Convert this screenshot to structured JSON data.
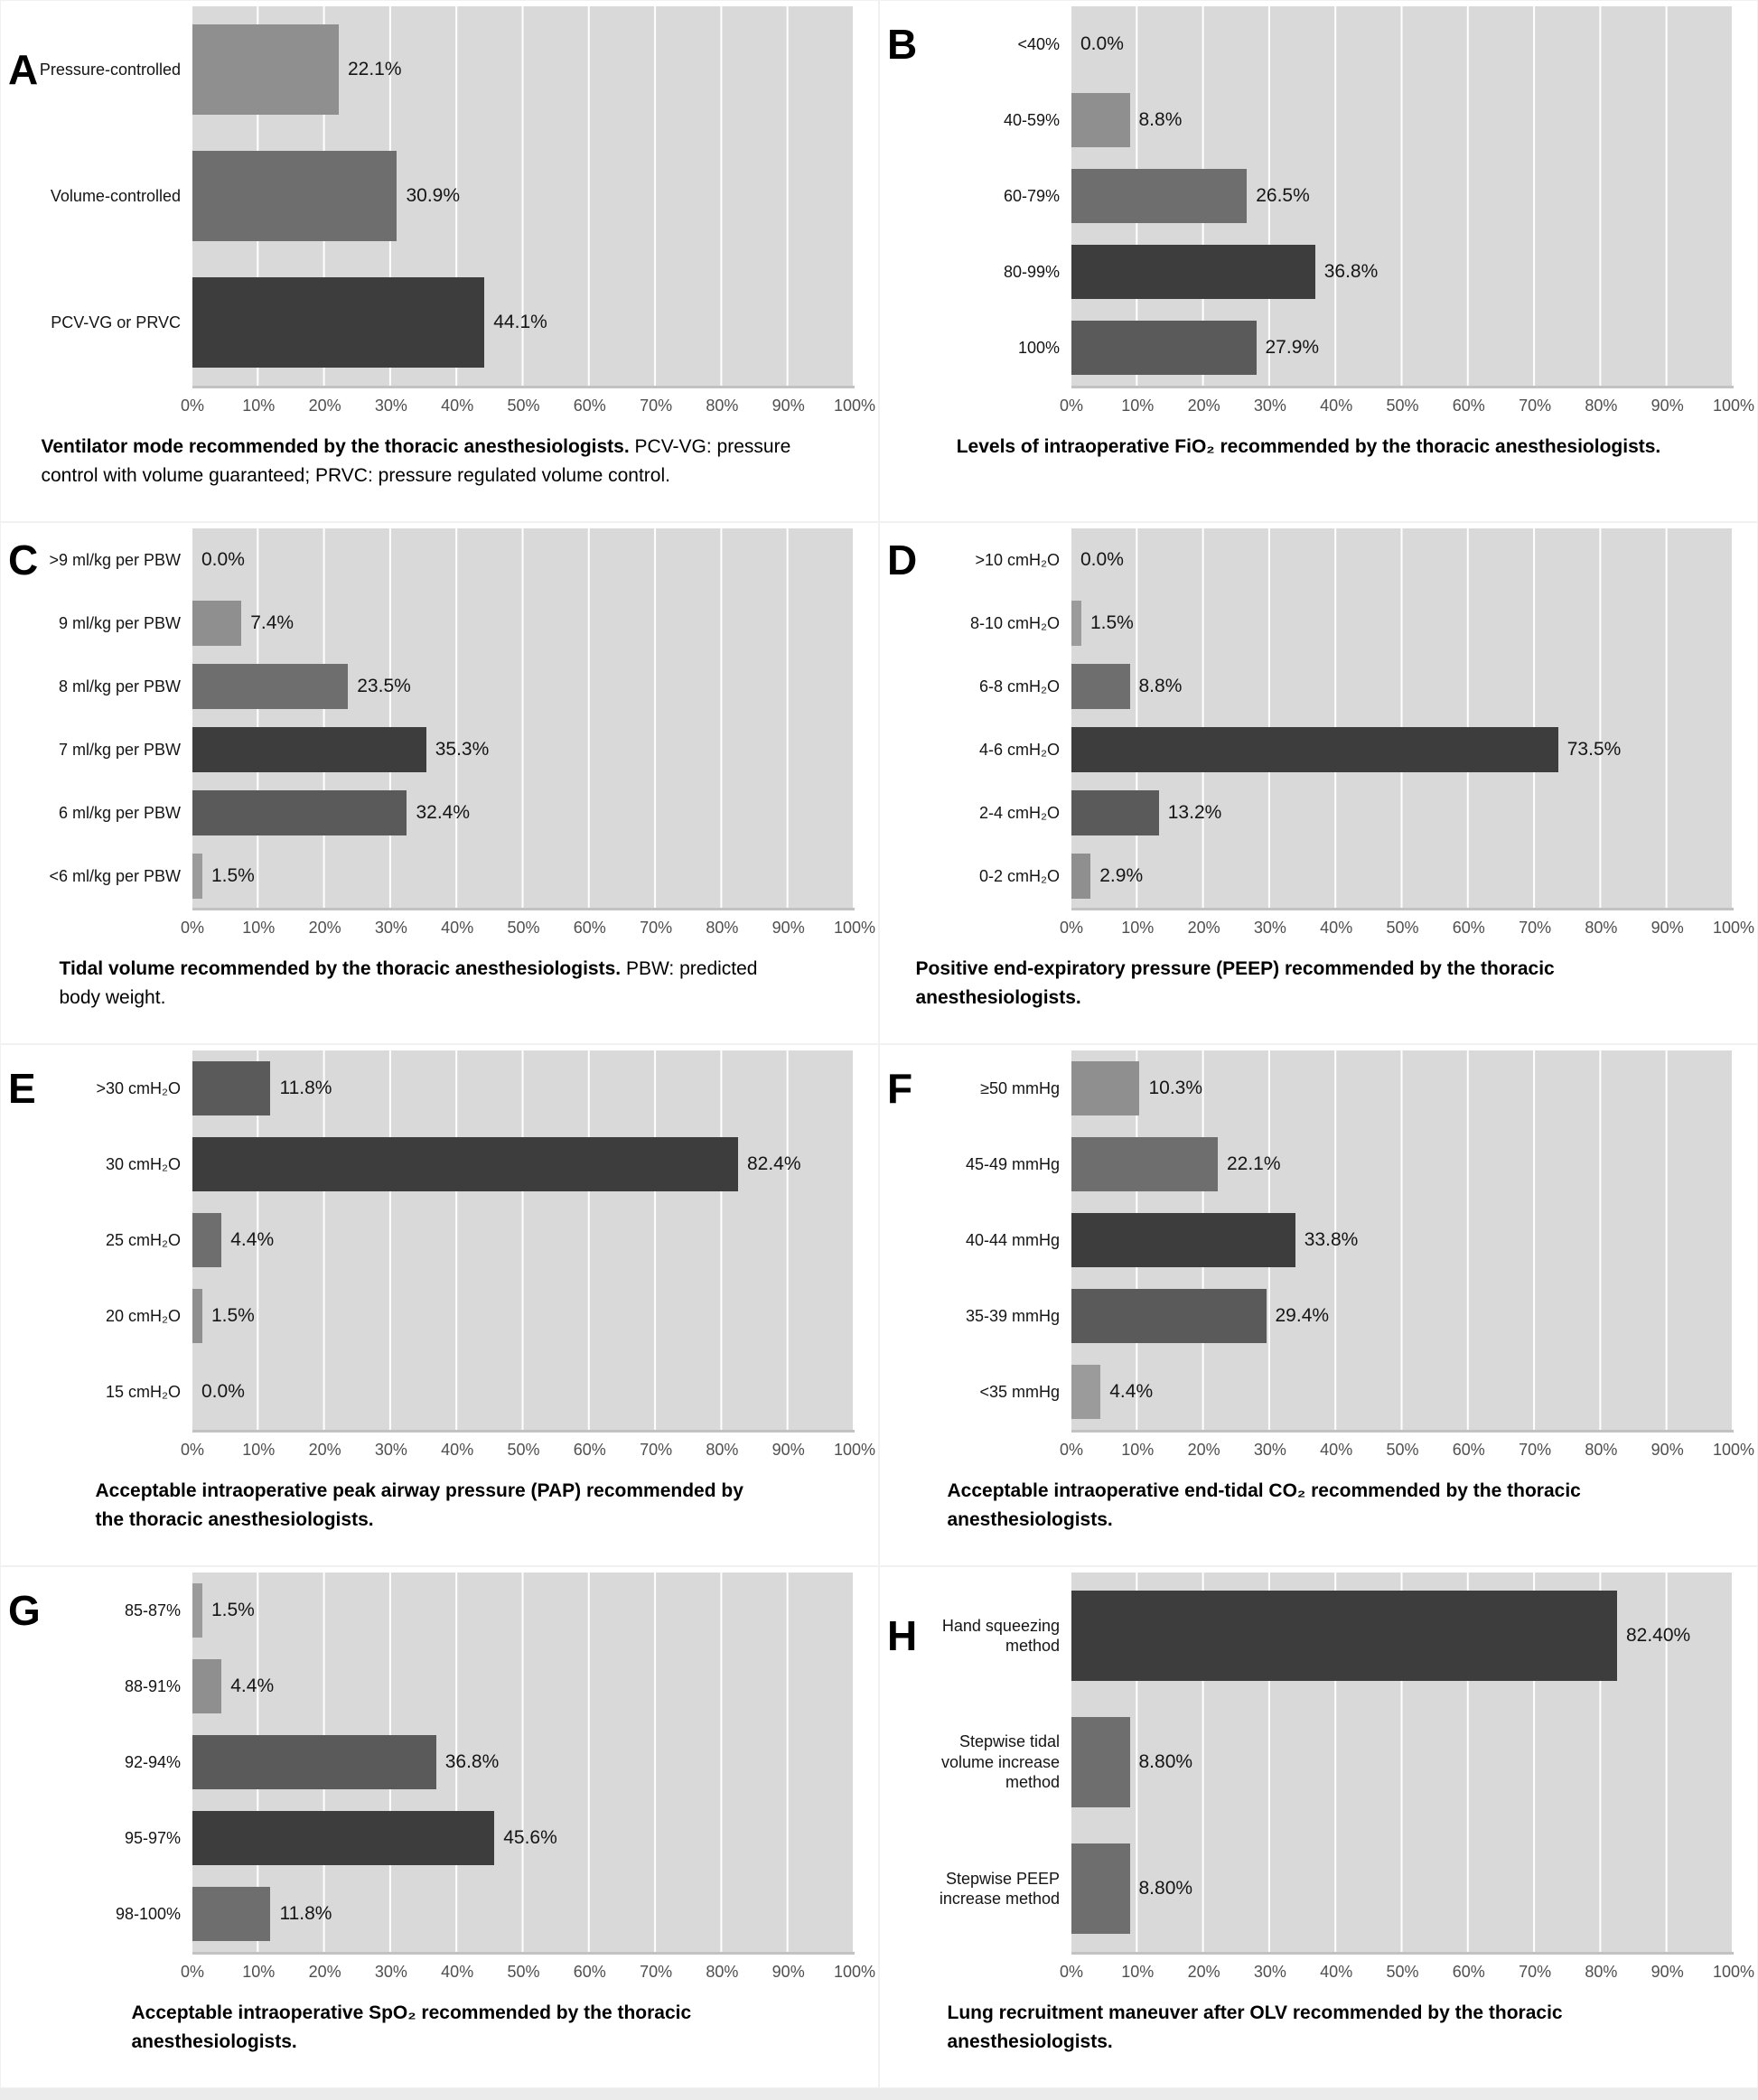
{
  "figure": {
    "axis_ticks": [
      "0%",
      "10%",
      "20%",
      "30%",
      "40%",
      "50%",
      "60%",
      "70%",
      "80%",
      "90%",
      "100%"
    ],
    "colors": {
      "plot_background": "#d9d9d9",
      "gridline": "#ffffff",
      "axis_line": "#c2c2c2",
      "tick_text": "#4f4f4f",
      "bar_darkest": "#3d3d3d",
      "bar_dark": "#5a5a5a",
      "bar_medium": "#6e6e6e",
      "bar_light": "#8f8f8f",
      "bar_lightest": "#9b9b9b"
    }
  },
  "chart_data": [
    {
      "id": "A",
      "type": "bar",
      "orientation": "horizontal",
      "xlim": [
        0,
        100
      ],
      "grid": true,
      "categories": [
        "Pressure-controlled",
        "Volume-controlled",
        "PCV-VG or PRVC"
      ],
      "values": [
        22.1,
        30.9,
        44.1
      ],
      "value_labels": [
        "22.1%",
        "30.9%",
        "44.1%"
      ],
      "bar_colors": [
        "#8f8f8f",
        "#6e6e6e",
        "#3d3d3d"
      ],
      "caption_bold": "Ventilator mode recommended by the thoracic anesthesiologists.",
      "caption_rest": "PCV-VG: pressure control with volume guaranteed; PRVC: pressure regulated volume control."
    },
    {
      "id": "B",
      "type": "bar",
      "orientation": "horizontal",
      "xlim": [
        0,
        100
      ],
      "grid": true,
      "categories": [
        "<40%",
        "40-59%",
        "60-79%",
        "80-99%",
        "100%"
      ],
      "values": [
        0.0,
        8.8,
        26.5,
        36.8,
        27.9
      ],
      "value_labels": [
        "0.0%",
        "8.8%",
        "26.5%",
        "36.8%",
        "27.9%"
      ],
      "bar_colors": [
        "none",
        "#8f8f8f",
        "#6e6e6e",
        "#3d3d3d",
        "#5a5a5a"
      ],
      "caption_bold": "Levels of intraoperative FiO₂ recommended by the thoracic anesthesiologists.",
      "caption_rest": ""
    },
    {
      "id": "C",
      "type": "bar",
      "orientation": "horizontal",
      "xlim": [
        0,
        100
      ],
      "grid": true,
      "categories": [
        ">9 ml/kg per PBW",
        "9 ml/kg per PBW",
        "8 ml/kg per PBW",
        "7 ml/kg per PBW",
        "6 ml/kg per PBW",
        "<6 ml/kg per PBW"
      ],
      "values": [
        0.0,
        7.4,
        23.5,
        35.3,
        32.4,
        1.5
      ],
      "value_labels": [
        "0.0%",
        "7.4%",
        "23.5%",
        "35.3%",
        "32.4%",
        "1.5%"
      ],
      "bar_colors": [
        "none",
        "#8f8f8f",
        "#6e6e6e",
        "#3d3d3d",
        "#5a5a5a",
        "#9b9b9b"
      ],
      "caption_bold": "Tidal volume recommended by the thoracic anesthesiologists.",
      "caption_rest": "PBW: predicted body weight."
    },
    {
      "id": "D",
      "type": "bar",
      "orientation": "horizontal",
      "xlim": [
        0,
        100
      ],
      "grid": true,
      "categories": [
        ">10 cmH₂O",
        "8-10 cmH₂O",
        "6-8 cmH₂O",
        "4-6 cmH₂O",
        "2-4 cmH₂O",
        "0-2 cmH₂O"
      ],
      "values": [
        0.0,
        1.5,
        8.8,
        73.5,
        13.2,
        2.9
      ],
      "value_labels": [
        "0.0%",
        "1.5%",
        "8.8%",
        "73.5%",
        "13.2%",
        "2.9%"
      ],
      "bar_colors": [
        "none",
        "#9b9b9b",
        "#6e6e6e",
        "#3d3d3d",
        "#5a5a5a",
        "#8f8f8f"
      ],
      "caption_bold": "Positive end-expiratory pressure (PEEP) recommended by the thoracic anesthesiologists.",
      "caption_rest": ""
    },
    {
      "id": "E",
      "type": "bar",
      "orientation": "horizontal",
      "xlim": [
        0,
        100
      ],
      "grid": true,
      "categories": [
        ">30 cmH₂O",
        "30 cmH₂O",
        "25 cmH₂O",
        "20 cmH₂O",
        "15 cmH₂O"
      ],
      "values": [
        11.8,
        82.4,
        4.4,
        1.5,
        0.0
      ],
      "value_labels": [
        "11.8%",
        "82.4%",
        "4.4%",
        "1.5%",
        "0.0%"
      ],
      "bar_colors": [
        "#5a5a5a",
        "#3d3d3d",
        "#6e6e6e",
        "#8f8f8f",
        "none"
      ],
      "caption_bold": "Acceptable intraoperative peak airway pressure (PAP) recommended by the thoracic anesthesiologists.",
      "caption_rest": ""
    },
    {
      "id": "F",
      "type": "bar",
      "orientation": "horizontal",
      "xlim": [
        0,
        100
      ],
      "grid": true,
      "categories": [
        "≥50 mmHg",
        "45-49 mmHg",
        "40-44 mmHg",
        "35-39 mmHg",
        "<35 mmHg"
      ],
      "values": [
        10.3,
        22.1,
        33.8,
        29.4,
        4.4
      ],
      "value_labels": [
        "10.3%",
        "22.1%",
        "33.8%",
        "29.4%",
        "4.4%"
      ],
      "bar_colors": [
        "#8f8f8f",
        "#6e6e6e",
        "#3d3d3d",
        "#5a5a5a",
        "#9b9b9b"
      ],
      "caption_bold": "Acceptable intraoperative end-tidal CO₂ recommended by the thoracic anesthesiologists.",
      "caption_rest": ""
    },
    {
      "id": "G",
      "type": "bar",
      "orientation": "horizontal",
      "xlim": [
        0,
        100
      ],
      "grid": true,
      "categories": [
        "85-87%",
        "88-91%",
        "92-94%",
        "95-97%",
        "98-100%"
      ],
      "values": [
        1.5,
        4.4,
        36.8,
        45.6,
        11.8
      ],
      "value_labels": [
        "1.5%",
        "4.4%",
        "36.8%",
        "45.6%",
        "11.8%"
      ],
      "bar_colors": [
        "#9b9b9b",
        "#8f8f8f",
        "#5a5a5a",
        "#3d3d3d",
        "#6e6e6e"
      ],
      "caption_bold": "Acceptable intraoperative SpO₂ recommended by the thoracic anesthesiologists.",
      "caption_rest": ""
    },
    {
      "id": "H",
      "type": "bar",
      "orientation": "horizontal",
      "xlim": [
        0,
        100
      ],
      "grid": true,
      "categories": [
        "Hand squeezing method",
        "Stepwise tidal volume increase method",
        "Stepwise PEEP increase method"
      ],
      "values": [
        82.4,
        8.8,
        8.8
      ],
      "value_labels": [
        "82.40%",
        "8.80%",
        "8.80%"
      ],
      "bar_colors": [
        "#3d3d3d",
        "#6e6e6e",
        "#6e6e6e"
      ],
      "caption_bold": "Lung recruitment maneuver after OLV recommended by the thoracic anesthesiologists.",
      "caption_rest": ""
    }
  ]
}
